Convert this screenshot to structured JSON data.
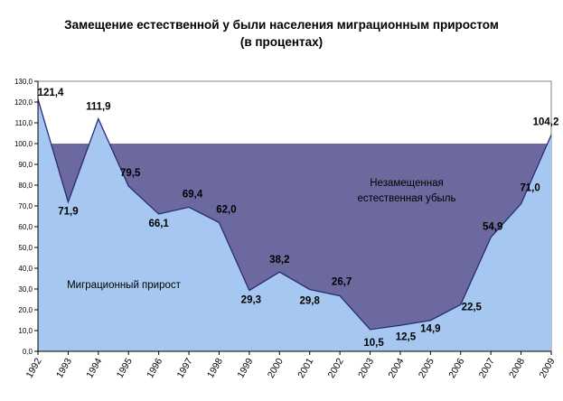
{
  "title_line1": "Замещение естественной у были населения миграционным приростом",
  "title_line2": "(в процентах)",
  "chart_data": {
    "type": "area",
    "x": [
      "1992",
      "1993",
      "1994",
      "1995",
      "1996",
      "1997",
      "1998",
      "1999",
      "2000",
      "2001",
      "2002",
      "2003",
      "2004",
      "2005",
      "2006",
      "2007",
      "2008",
      "2009"
    ],
    "series": [
      {
        "name": "Миграционный прирост",
        "values": [
          121.4,
          71.9,
          111.9,
          79.5,
          66.1,
          69.4,
          62.0,
          29.3,
          38.2,
          29.8,
          26.7,
          10.5,
          12.5,
          14.9,
          22.5,
          54.9,
          71.0,
          104.2
        ]
      }
    ],
    "point_labels": [
      "121,4",
      "71,9",
      "111,9",
      "79,5",
      "66,1",
      "69,4",
      "62,0",
      "29,3",
      "38,2",
      "29,8",
      "26,7",
      "10,5",
      "12,5",
      "14,9",
      "22,5",
      "54,9",
      "71,0",
      "104,2"
    ],
    "y_ticks": [
      "0,0",
      "10,0",
      "20,0",
      "30,0",
      "40,0",
      "50,0",
      "60,0",
      "70,0",
      "80,0",
      "90,0",
      "100,0",
      "110,0",
      "120,0",
      "130,0"
    ],
    "ylim": [
      0,
      130
    ],
    "reference_level": 100,
    "annotations": {
      "migration_label": "Миграционный прирост",
      "unreplaced_line1": "Незамещенная",
      "unreplaced_line2": "естественная убыль"
    },
    "grid": false,
    "colors": {
      "migration_fill": "#a6c8f0",
      "unreplaced_fill": "#6c699f",
      "line": "#2b2a78",
      "plot_bg": "#ffffff"
    }
  }
}
